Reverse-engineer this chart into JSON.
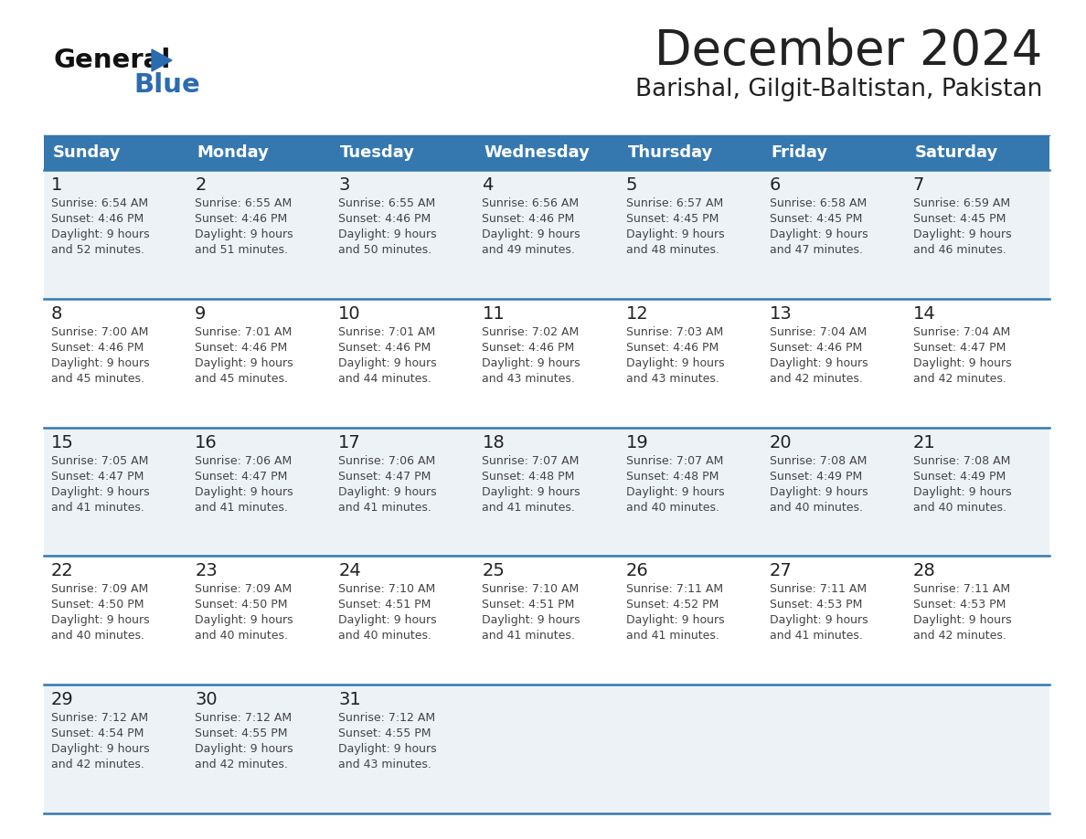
{
  "title": "December 2024",
  "subtitle": "Barishal, Gilgit-Baltistan, Pakistan",
  "header_color": "#3578b0",
  "header_text_color": "#ffffff",
  "days_of_week": [
    "Sunday",
    "Monday",
    "Tuesday",
    "Wednesday",
    "Thursday",
    "Friday",
    "Saturday"
  ],
  "weeks": [
    [
      {
        "day": 1,
        "sunrise": "6:54 AM",
        "sunset": "4:46 PM",
        "daylight_hours": 9,
        "daylight_minutes": 52
      },
      {
        "day": 2,
        "sunrise": "6:55 AM",
        "sunset": "4:46 PM",
        "daylight_hours": 9,
        "daylight_minutes": 51
      },
      {
        "day": 3,
        "sunrise": "6:55 AM",
        "sunset": "4:46 PM",
        "daylight_hours": 9,
        "daylight_minutes": 50
      },
      {
        "day": 4,
        "sunrise": "6:56 AM",
        "sunset": "4:46 PM",
        "daylight_hours": 9,
        "daylight_minutes": 49
      },
      {
        "day": 5,
        "sunrise": "6:57 AM",
        "sunset": "4:45 PM",
        "daylight_hours": 9,
        "daylight_minutes": 48
      },
      {
        "day": 6,
        "sunrise": "6:58 AM",
        "sunset": "4:45 PM",
        "daylight_hours": 9,
        "daylight_minutes": 47
      },
      {
        "day": 7,
        "sunrise": "6:59 AM",
        "sunset": "4:45 PM",
        "daylight_hours": 9,
        "daylight_minutes": 46
      }
    ],
    [
      {
        "day": 8,
        "sunrise": "7:00 AM",
        "sunset": "4:46 PM",
        "daylight_hours": 9,
        "daylight_minutes": 45
      },
      {
        "day": 9,
        "sunrise": "7:01 AM",
        "sunset": "4:46 PM",
        "daylight_hours": 9,
        "daylight_minutes": 45
      },
      {
        "day": 10,
        "sunrise": "7:01 AM",
        "sunset": "4:46 PM",
        "daylight_hours": 9,
        "daylight_minutes": 44
      },
      {
        "day": 11,
        "sunrise": "7:02 AM",
        "sunset": "4:46 PM",
        "daylight_hours": 9,
        "daylight_minutes": 43
      },
      {
        "day": 12,
        "sunrise": "7:03 AM",
        "sunset": "4:46 PM",
        "daylight_hours": 9,
        "daylight_minutes": 43
      },
      {
        "day": 13,
        "sunrise": "7:04 AM",
        "sunset": "4:46 PM",
        "daylight_hours": 9,
        "daylight_minutes": 42
      },
      {
        "day": 14,
        "sunrise": "7:04 AM",
        "sunset": "4:47 PM",
        "daylight_hours": 9,
        "daylight_minutes": 42
      }
    ],
    [
      {
        "day": 15,
        "sunrise": "7:05 AM",
        "sunset": "4:47 PM",
        "daylight_hours": 9,
        "daylight_minutes": 41
      },
      {
        "day": 16,
        "sunrise": "7:06 AM",
        "sunset": "4:47 PM",
        "daylight_hours": 9,
        "daylight_minutes": 41
      },
      {
        "day": 17,
        "sunrise": "7:06 AM",
        "sunset": "4:47 PM",
        "daylight_hours": 9,
        "daylight_minutes": 41
      },
      {
        "day": 18,
        "sunrise": "7:07 AM",
        "sunset": "4:48 PM",
        "daylight_hours": 9,
        "daylight_minutes": 41
      },
      {
        "day": 19,
        "sunrise": "7:07 AM",
        "sunset": "4:48 PM",
        "daylight_hours": 9,
        "daylight_minutes": 40
      },
      {
        "day": 20,
        "sunrise": "7:08 AM",
        "sunset": "4:49 PM",
        "daylight_hours": 9,
        "daylight_minutes": 40
      },
      {
        "day": 21,
        "sunrise": "7:08 AM",
        "sunset": "4:49 PM",
        "daylight_hours": 9,
        "daylight_minutes": 40
      }
    ],
    [
      {
        "day": 22,
        "sunrise": "7:09 AM",
        "sunset": "4:50 PM",
        "daylight_hours": 9,
        "daylight_minutes": 40
      },
      {
        "day": 23,
        "sunrise": "7:09 AM",
        "sunset": "4:50 PM",
        "daylight_hours": 9,
        "daylight_minutes": 40
      },
      {
        "day": 24,
        "sunrise": "7:10 AM",
        "sunset": "4:51 PM",
        "daylight_hours": 9,
        "daylight_minutes": 40
      },
      {
        "day": 25,
        "sunrise": "7:10 AM",
        "sunset": "4:51 PM",
        "daylight_hours": 9,
        "daylight_minutes": 41
      },
      {
        "day": 26,
        "sunrise": "7:11 AM",
        "sunset": "4:52 PM",
        "daylight_hours": 9,
        "daylight_minutes": 41
      },
      {
        "day": 27,
        "sunrise": "7:11 AM",
        "sunset": "4:53 PM",
        "daylight_hours": 9,
        "daylight_minutes": 41
      },
      {
        "day": 28,
        "sunrise": "7:11 AM",
        "sunset": "4:53 PM",
        "daylight_hours": 9,
        "daylight_minutes": 42
      }
    ],
    [
      {
        "day": 29,
        "sunrise": "7:12 AM",
        "sunset": "4:54 PM",
        "daylight_hours": 9,
        "daylight_minutes": 42
      },
      {
        "day": 30,
        "sunrise": "7:12 AM",
        "sunset": "4:55 PM",
        "daylight_hours": 9,
        "daylight_minutes": 42
      },
      {
        "day": 31,
        "sunrise": "7:12 AM",
        "sunset": "4:55 PM",
        "daylight_hours": 9,
        "daylight_minutes": 43
      },
      null,
      null,
      null,
      null
    ]
  ],
  "bg_color": "#ffffff",
  "cell_bg_even": "#edf2f7",
  "cell_bg_odd": "#ffffff",
  "separator_color": "#3578b0",
  "text_color": "#444444",
  "day_number_color": "#222222",
  "logo_general_color": "#111111",
  "logo_blue_color": "#2b6cb0",
  "title_fontsize": 38,
  "subtitle_fontsize": 19,
  "header_fontsize": 13,
  "day_num_fontsize": 14,
  "cell_text_fontsize": 9
}
